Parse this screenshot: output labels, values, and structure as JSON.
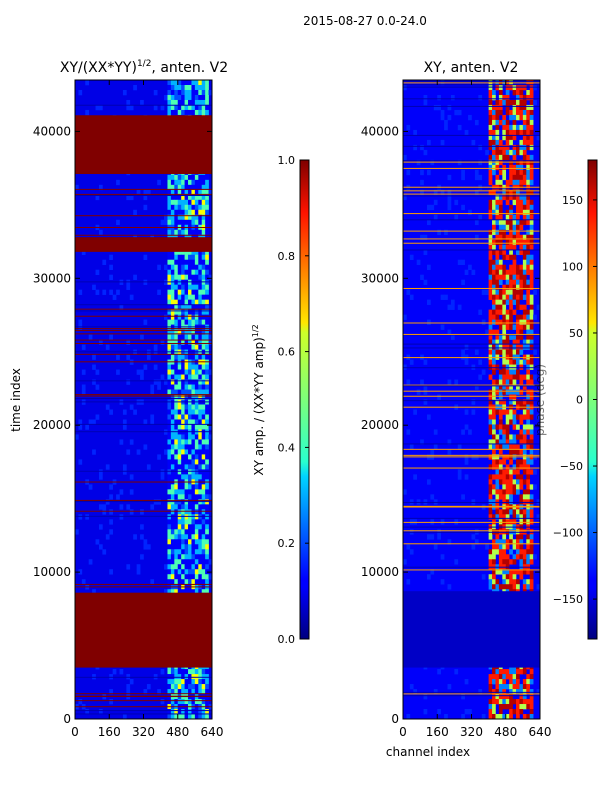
{
  "suptitle": "2015-08-27 0.0-24.0",
  "chart_data": [
    {
      "type": "heatmap",
      "title_main": "XY/(XX*YY)",
      "title_sup": "1/2",
      "title_tail": ", anten. V2",
      "xlabel": "",
      "ylabel": "time index",
      "xlim": [
        0,
        640
      ],
      "ylim": [
        0,
        43500
      ],
      "xticks": [
        0,
        160,
        320,
        480,
        640
      ],
      "yticks": [
        0,
        10000,
        20000,
        30000,
        40000
      ],
      "colorbar": {
        "label_main": "XY amp. / (XX*YY amp)",
        "label_sup": "1/2",
        "ticks": [
          0.0,
          0.2,
          0.4,
          0.6,
          0.8,
          1.0
        ],
        "tick_labels": [
          "0.0",
          "0.2",
          "0.4",
          "0.6",
          "0.8",
          "1.0"
        ],
        "range": [
          0,
          1
        ]
      },
      "solid_blocks": [
        {
          "from": 3500,
          "to": 8600,
          "value": 1.0
        },
        {
          "from": 31800,
          "to": 32800,
          "value": 1.0
        },
        {
          "from": 37100,
          "to": 41100,
          "value": 1.0
        }
      ],
      "active_band": {
        "from": 440,
        "to": 620
      }
    },
    {
      "type": "heatmap",
      "title": "XY, anten. V2",
      "xlabel": "channel index",
      "ylabel": "",
      "xlim": [
        0,
        640
      ],
      "ylim": [
        0,
        43500
      ],
      "xticks": [
        0,
        160,
        320,
        480,
        640
      ],
      "yticks": [
        0,
        10000,
        20000,
        30000,
        40000
      ],
      "colorbar": {
        "label": "phase (deg)",
        "ticks": [
          -150,
          -100,
          -50,
          0,
          50,
          100,
          150
        ],
        "tick_labels": [
          "−150",
          "−100",
          "−50",
          "0",
          "50",
          "100",
          "150"
        ],
        "range": [
          -180,
          180
        ]
      },
      "solid_blocks": [
        {
          "from": 3500,
          "to": 8700,
          "value": -155
        }
      ],
      "active_band": {
        "from": 400,
        "to": 610
      }
    }
  ]
}
